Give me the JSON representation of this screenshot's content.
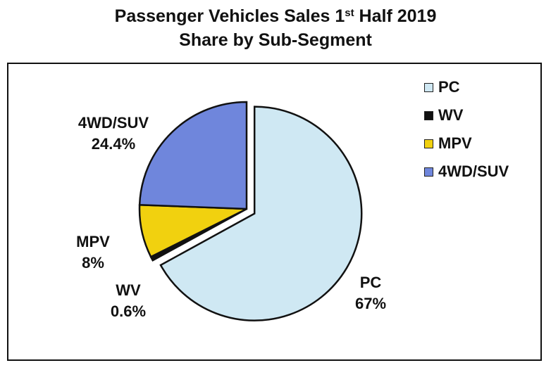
{
  "chart_data": {
    "type": "pie",
    "title_line1": "Passenger Vehicles Sales 1",
    "title_sup": "st",
    "title_line1_suffix": " Half 2019",
    "title_line2": "Share by Sub-Segment",
    "start_angle": "12 o'clock",
    "direction": "clockwise",
    "exploded": [
      "PC"
    ],
    "legend_position": "right",
    "slices": [
      {
        "name": "PC",
        "value": 67,
        "label": "PC",
        "pct_label": "67%",
        "color": "#cfe8f3"
      },
      {
        "name": "WV",
        "value": 0.6,
        "label": "WV",
        "pct_label": "0.6%",
        "color": "#111111"
      },
      {
        "name": "MPV",
        "value": 8,
        "label": "MPV",
        "pct_label": "8%",
        "color": "#f1d10f"
      },
      {
        "name": "4WD/SUV",
        "value": 24.4,
        "label": "4WD/SUV",
        "pct_label": "24.4%",
        "color": "#6f86dc"
      }
    ]
  }
}
